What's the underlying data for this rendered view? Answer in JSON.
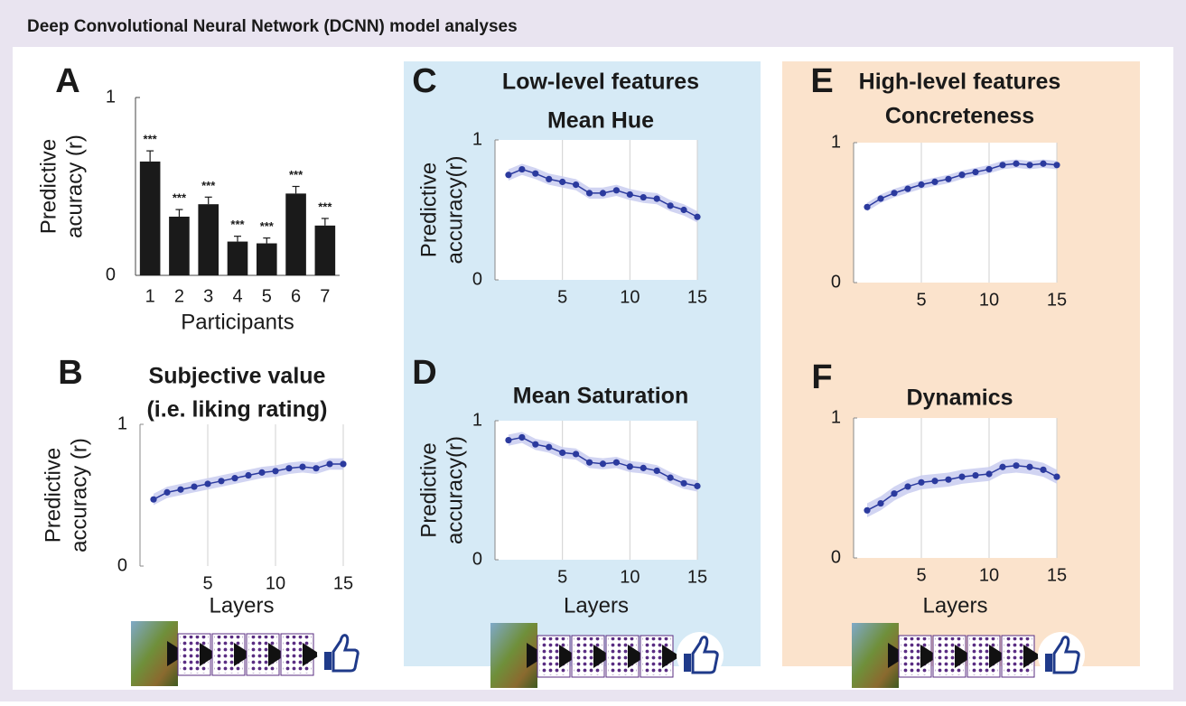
{
  "title": "Deep Convolutional Neural Network (DCNN) model analyses",
  "chart_data": [
    {
      "type": "bar",
      "panel": "A",
      "xlabel": "Participants",
      "ylabel": [
        "Predictive",
        "acuracy (r)"
      ],
      "categories": [
        "1",
        "2",
        "3",
        "4",
        "5",
        "6",
        "7"
      ],
      "values": [
        0.64,
        0.33,
        0.4,
        0.19,
        0.18,
        0.46,
        0.28
      ],
      "errors": [
        0.06,
        0.04,
        0.04,
        0.03,
        0.03,
        0.04,
        0.04
      ],
      "annotations": [
        "***",
        "***",
        "***",
        "***",
        "***",
        "***",
        "***"
      ],
      "color": "#1a1a1a",
      "ylim": [
        0,
        1
      ],
      "yticks": [
        0,
        1
      ]
    },
    {
      "type": "line",
      "panel": "B",
      "title": [
        "Subjective value",
        "(i.e. liking rating)"
      ],
      "xlabel": "Layers",
      "ylabel": [
        "Predictive",
        "accuracy (r)"
      ],
      "x": [
        1,
        2,
        3,
        4,
        5,
        6,
        7,
        8,
        9,
        10,
        11,
        12,
        13,
        14,
        15
      ],
      "values": [
        0.47,
        0.52,
        0.54,
        0.56,
        0.58,
        0.6,
        0.62,
        0.64,
        0.66,
        0.67,
        0.69,
        0.7,
        0.69,
        0.72,
        0.72
      ],
      "upper": [
        0.51,
        0.56,
        0.58,
        0.6,
        0.62,
        0.64,
        0.66,
        0.68,
        0.7,
        0.71,
        0.73,
        0.74,
        0.73,
        0.76,
        0.76
      ],
      "lower": [
        0.43,
        0.48,
        0.5,
        0.52,
        0.54,
        0.56,
        0.58,
        0.6,
        0.62,
        0.63,
        0.65,
        0.66,
        0.65,
        0.68,
        0.68
      ],
      "color": "#2b3a9e",
      "band_color": "#c9cdf0",
      "xlim": [
        0,
        15
      ],
      "xticks": [
        5,
        10,
        15
      ],
      "ylim": [
        0,
        1
      ],
      "yticks": [
        0,
        1
      ],
      "grid": true
    },
    {
      "type": "line",
      "panel": "C",
      "heading": "Low-level features",
      "title": "Mean Hue",
      "ylabel": [
        "Predictive",
        "accuracy(r)"
      ],
      "x": [
        1,
        2,
        3,
        4,
        5,
        6,
        7,
        8,
        9,
        10,
        11,
        12,
        13,
        14,
        15
      ],
      "values": [
        0.75,
        0.79,
        0.76,
        0.72,
        0.7,
        0.68,
        0.62,
        0.62,
        0.64,
        0.61,
        0.59,
        0.58,
        0.53,
        0.5,
        0.45
      ],
      "upper": [
        0.79,
        0.83,
        0.8,
        0.76,
        0.74,
        0.72,
        0.66,
        0.66,
        0.68,
        0.65,
        0.63,
        0.62,
        0.57,
        0.54,
        0.49
      ],
      "lower": [
        0.71,
        0.75,
        0.72,
        0.68,
        0.66,
        0.64,
        0.58,
        0.58,
        0.6,
        0.57,
        0.55,
        0.54,
        0.49,
        0.46,
        0.41
      ],
      "color": "#2b3a9e",
      "band_color": "#c9cdf0",
      "xlim": [
        0,
        15
      ],
      "xticks": [
        5,
        10,
        15
      ],
      "ylim": [
        0,
        1
      ],
      "yticks": [
        0,
        1
      ],
      "grid": true
    },
    {
      "type": "line",
      "panel": "D",
      "title": "Mean Saturation",
      "xlabel": "Layers",
      "ylabel": [
        "Predictive",
        "accuracy(r)"
      ],
      "x": [
        1,
        2,
        3,
        4,
        5,
        6,
        7,
        8,
        9,
        10,
        11,
        12,
        13,
        14,
        15
      ],
      "values": [
        0.86,
        0.88,
        0.83,
        0.81,
        0.77,
        0.76,
        0.7,
        0.69,
        0.7,
        0.67,
        0.66,
        0.64,
        0.59,
        0.55,
        0.53
      ],
      "upper": [
        0.9,
        0.92,
        0.87,
        0.85,
        0.81,
        0.8,
        0.74,
        0.73,
        0.74,
        0.71,
        0.7,
        0.68,
        0.63,
        0.59,
        0.57
      ],
      "lower": [
        0.82,
        0.84,
        0.79,
        0.77,
        0.73,
        0.72,
        0.66,
        0.65,
        0.66,
        0.63,
        0.62,
        0.6,
        0.55,
        0.51,
        0.49
      ],
      "color": "#2b3a9e",
      "band_color": "#c9cdf0",
      "xlim": [
        0,
        15
      ],
      "xticks": [
        5,
        10,
        15
      ],
      "ylim": [
        0,
        1
      ],
      "yticks": [
        0,
        1
      ],
      "grid": true
    },
    {
      "type": "line",
      "panel": "E",
      "heading": "High-level features",
      "title": "Concreteness",
      "x": [
        1,
        2,
        3,
        4,
        5,
        6,
        7,
        8,
        9,
        10,
        11,
        12,
        13,
        14,
        15
      ],
      "values": [
        0.54,
        0.6,
        0.64,
        0.67,
        0.7,
        0.72,
        0.74,
        0.77,
        0.79,
        0.81,
        0.84,
        0.85,
        0.84,
        0.85,
        0.84
      ],
      "upper": [
        0.57,
        0.63,
        0.67,
        0.7,
        0.73,
        0.75,
        0.77,
        0.8,
        0.82,
        0.84,
        0.87,
        0.88,
        0.87,
        0.88,
        0.87
      ],
      "lower": [
        0.51,
        0.57,
        0.61,
        0.64,
        0.67,
        0.69,
        0.71,
        0.74,
        0.76,
        0.78,
        0.81,
        0.82,
        0.81,
        0.82,
        0.81
      ],
      "color": "#2b3a9e",
      "band_color": "#c9cdf0",
      "xlim": [
        0,
        15
      ],
      "xticks": [
        5,
        10,
        15
      ],
      "ylim": [
        0,
        1
      ],
      "yticks": [
        0,
        1
      ],
      "grid": true
    },
    {
      "type": "line",
      "panel": "F",
      "title": "Dynamics",
      "xlabel": "Layers",
      "x": [
        1,
        2,
        3,
        4,
        5,
        6,
        7,
        8,
        9,
        10,
        11,
        12,
        13,
        14,
        15
      ],
      "values": [
        0.34,
        0.39,
        0.46,
        0.51,
        0.54,
        0.55,
        0.56,
        0.58,
        0.59,
        0.6,
        0.65,
        0.66,
        0.65,
        0.63,
        0.58
      ],
      "upper": [
        0.39,
        0.44,
        0.51,
        0.56,
        0.59,
        0.6,
        0.61,
        0.63,
        0.64,
        0.65,
        0.7,
        0.71,
        0.7,
        0.68,
        0.63
      ],
      "lower": [
        0.29,
        0.34,
        0.41,
        0.46,
        0.49,
        0.5,
        0.51,
        0.53,
        0.54,
        0.55,
        0.6,
        0.61,
        0.6,
        0.58,
        0.53
      ],
      "color": "#2b3a9e",
      "band_color": "#c9cdf0",
      "xlim": [
        0,
        15
      ],
      "xticks": [
        5,
        10,
        15
      ],
      "ylim": [
        0,
        1
      ],
      "yticks": [
        0,
        1
      ],
      "grid": true
    }
  ]
}
